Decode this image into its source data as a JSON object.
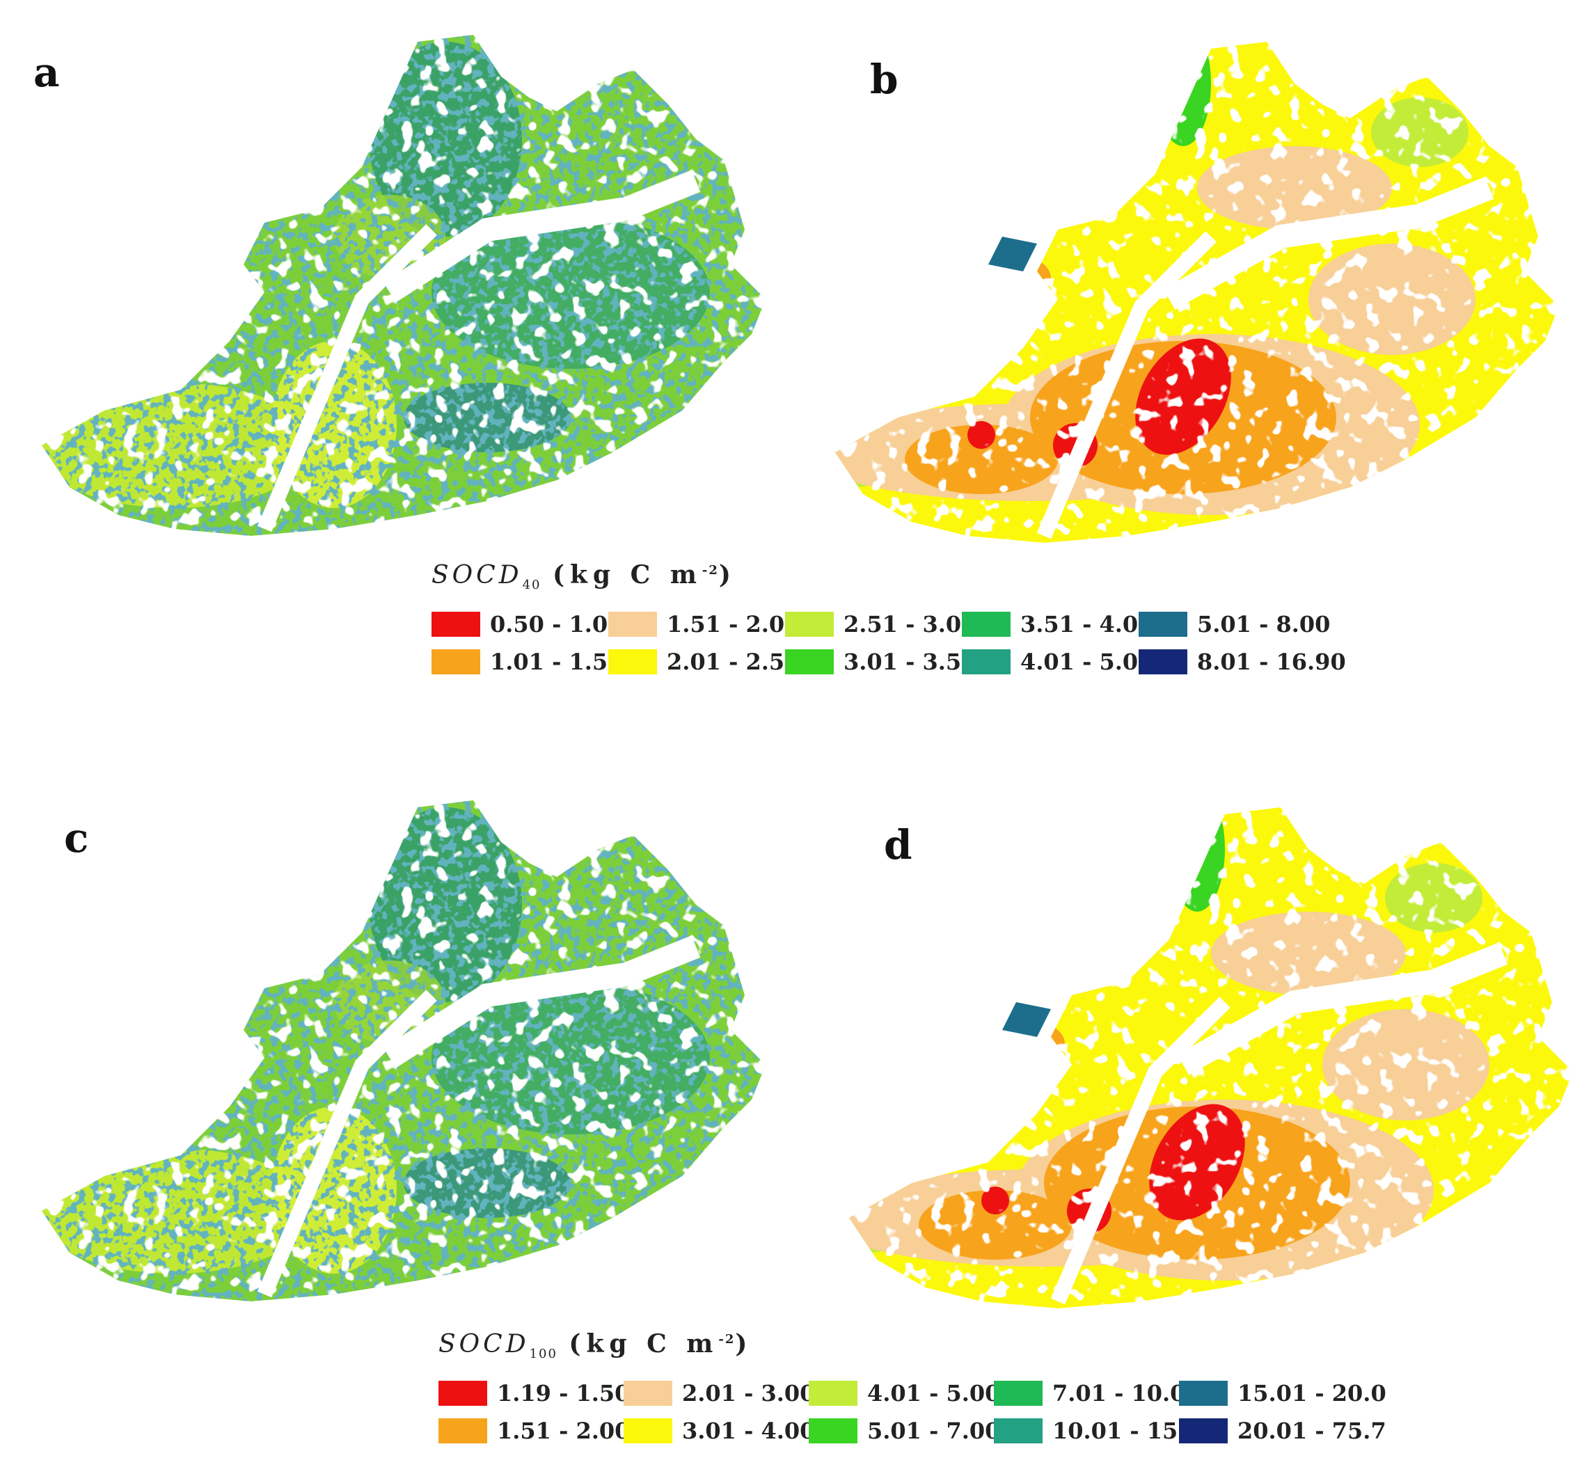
{
  "panels": [
    {
      "label": "a",
      "style": "fine"
    },
    {
      "label": "b",
      "style": "zonal"
    },
    {
      "label": "c",
      "style": "fine"
    },
    {
      "label": "d",
      "style": "zonal"
    }
  ],
  "legends": [
    {
      "title_main": "SOCD",
      "title_sub": "40",
      "title_unit": "(kg C m",
      "title_exp": "-2",
      "title_close": ")",
      "classes": [
        {
          "label": "0.50 - 1.00",
          "color": "#ee1111"
        },
        {
          "label": "1.01 - 1.50",
          "color": "#f8a31c"
        },
        {
          "label": "1.51 - 2.00",
          "color": "#f7cf97"
        },
        {
          "label": "2.01 - 2.50",
          "color": "#fbf80c"
        },
        {
          "label": "2.51 - 3.00",
          "color": "#c2ec38"
        },
        {
          "label": "3.01 - 3.50",
          "color": "#3ad422"
        },
        {
          "label": "3.51 - 4.00",
          "color": "#1fba56"
        },
        {
          "label": "4.01 - 5.00",
          "color": "#23a183"
        },
        {
          "label": "5.01 - 8.00",
          "color": "#1c6e8c"
        },
        {
          "label": "8.01 - 16.90",
          "color": "#152878"
        }
      ]
    },
    {
      "title_main": "SOCD",
      "title_sub": "100",
      "title_unit": "(kg C m",
      "title_exp": "-2",
      "title_close": ")",
      "classes": [
        {
          "label": "1.19 - 1.50",
          "color": "#ee1111"
        },
        {
          "label": "1.51 - 2.00",
          "color": "#f8a31c"
        },
        {
          "label": "2.01 - 3.00",
          "color": "#f7cf97"
        },
        {
          "label": "3.01 - 4.00",
          "color": "#fbf80c"
        },
        {
          "label": "4.01 - 5.00",
          "color": "#c2ec38"
        },
        {
          "label": "5.01 - 7.00",
          "color": "#3ad422"
        },
        {
          "label": "7.01 - 10.0",
          "color": "#1fba56"
        },
        {
          "label": "10.01 - 15.0",
          "color": "#23a183"
        },
        {
          "label": "15.01 - 20.0",
          "color": "#1c6e8c"
        },
        {
          "label": "20.01 - 75.7",
          "color": "#152878"
        }
      ]
    }
  ]
}
